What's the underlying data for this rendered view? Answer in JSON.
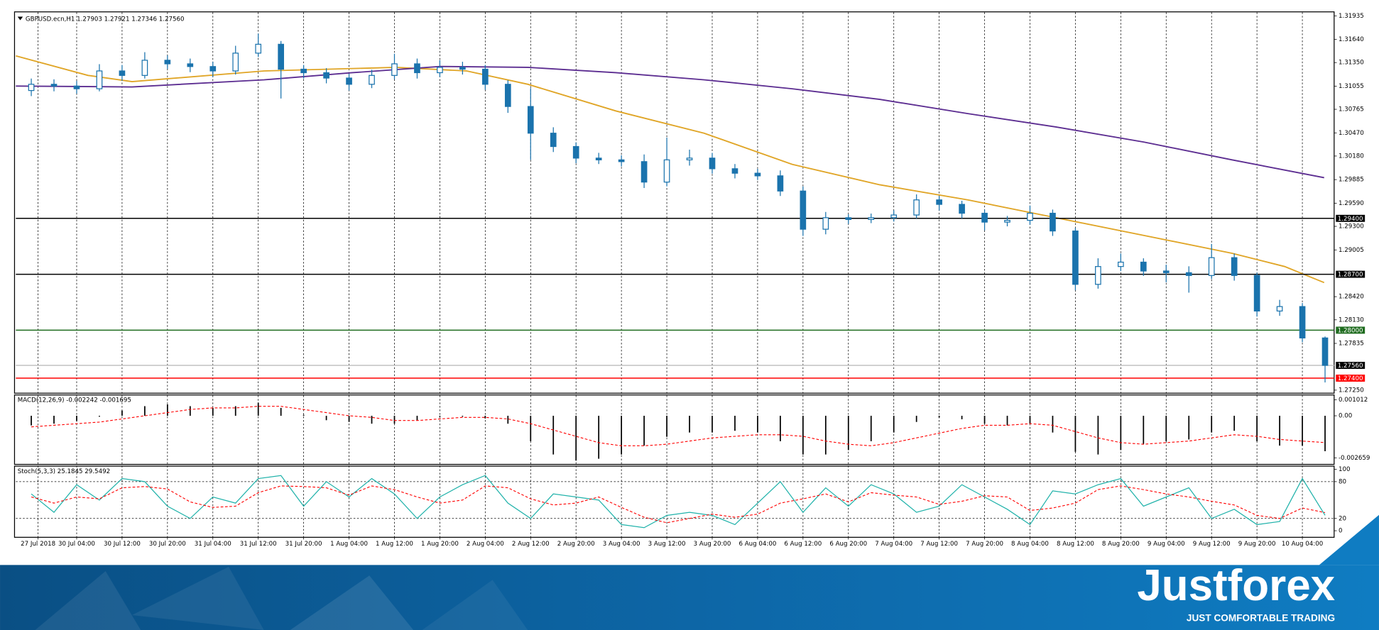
{
  "chart_data": [
    {
      "type": "candlestick",
      "title": "GBPUSD.ecn,H1  1.27903 1.27921 1.27346 1.27560",
      "color": "#1a73ad",
      "x": [
        0,
        0.5,
        1,
        1.5,
        2,
        2.5,
        3,
        3.5,
        4,
        4.5,
        5,
        5.5,
        6,
        6.5,
        7,
        7.5,
        8,
        8.5,
        9,
        9.5,
        10,
        10.5,
        11,
        11.5,
        12,
        12.5,
        13,
        13.5,
        14,
        14.5,
        15,
        15.5,
        16,
        16.5,
        17,
        17.5,
        18,
        18.5,
        19,
        19.5,
        20,
        20.5,
        21,
        21.5,
        22,
        22.5,
        23,
        23.5,
        24,
        24.5,
        25,
        25.5,
        26,
        26.5,
        27,
        27.5,
        28,
        28.5
      ],
      "open": [
        1.31,
        1.31078,
        1.31056,
        1.31022,
        1.31245,
        1.31189,
        1.31379,
        1.31334,
        1.313,
        1.31245,
        1.31468,
        1.31579,
        1.31267,
        1.31223,
        1.31156,
        1.31078,
        1.31189,
        1.31334,
        1.31223,
        1.3129,
        1.31267,
        1.31078,
        1.308,
        1.30466,
        1.30299,
        1.30154,
        1.30132,
        1.3011,
        1.29854,
        1.30132,
        1.30154,
        1.30021,
        1.29965,
        1.29932,
        1.29742,
        1.29264,
        1.29408,
        1.29386,
        1.29408,
        1.29442,
        1.29631,
        1.29575,
        1.29464,
        1.29353,
        1.29375,
        1.29464,
        1.29242,
        1.28574,
        1.28797,
        1.28852,
        1.28741,
        1.2872,
        1.28685,
        1.28908,
        1.28685,
        1.2824,
        1.28296,
        1.27903
      ],
      "high": [
        1.3115,
        1.3114,
        1.3112,
        1.3133,
        1.3132,
        1.3148,
        1.3144,
        1.314,
        1.3136,
        1.3156,
        1.31712,
        1.3162,
        1.3132,
        1.3128,
        1.3121,
        1.3126,
        1.3146,
        1.314,
        1.3138,
        1.3136,
        1.3132,
        1.3113,
        1.3103,
        1.3054,
        1.3035,
        1.3022,
        1.3019,
        1.302,
        1.3041,
        1.3026,
        1.3022,
        1.3008,
        1.3002,
        1.3,
        1.298,
        1.2948,
        1.2945,
        1.2946,
        1.295,
        1.297,
        1.2968,
        1.2962,
        1.2951,
        1.2943,
        1.2956,
        1.2951,
        1.2928,
        1.289,
        1.2896,
        1.289,
        1.2882,
        1.288,
        1.2908,
        1.2896,
        1.2872,
        1.2838,
        1.2834,
        1.27921
      ],
      "low": [
        1.3093,
        1.3099,
        1.3096,
        1.3099,
        1.3112,
        1.3115,
        1.3127,
        1.3123,
        1.3117,
        1.312,
        1.3142,
        1.309,
        1.3115,
        1.3109,
        1.31,
        1.3103,
        1.3114,
        1.3115,
        1.3117,
        1.312,
        1.3101,
        1.3072,
        1.30132,
        1.3023,
        1.3009,
        1.3008,
        1.3005,
        1.2978,
        1.298,
        1.3006,
        1.2996,
        1.299,
        1.2988,
        1.2968,
        1.2918,
        1.292,
        1.2933,
        1.2934,
        1.2936,
        1.294,
        1.295,
        1.294,
        1.2925,
        1.293,
        1.2932,
        1.2918,
        1.285,
        1.2852,
        1.2874,
        1.2868,
        1.286,
        1.2847,
        1.2864,
        1.2862,
        1.2817,
        1.2818,
        1.2785,
        1.27346
      ],
      "close": [
        1.31078,
        1.31056,
        1.31022,
        1.31245,
        1.31189,
        1.31379,
        1.31334,
        1.313,
        1.31245,
        1.31468,
        1.31579,
        1.31267,
        1.31223,
        1.31156,
        1.31078,
        1.31189,
        1.31334,
        1.31223,
        1.3129,
        1.31267,
        1.31078,
        1.308,
        1.30466,
        1.30299,
        1.30154,
        1.30132,
        1.3011,
        1.29854,
        1.30132,
        1.30154,
        1.30021,
        1.29965,
        1.29932,
        1.29742,
        1.29264,
        1.29408,
        1.29386,
        1.29408,
        1.29442,
        1.29631,
        1.29575,
        1.29464,
        1.29353,
        1.29375,
        1.29464,
        1.29242,
        1.28574,
        1.28797,
        1.28852,
        1.28741,
        1.2872,
        1.28685,
        1.28908,
        1.28685,
        1.2824,
        1.28296,
        1.27903,
        1.2756
      ],
      "lines": [
        {
          "color": "#e0a526",
          "x": [
            -0.34,
            1.25,
            2.22,
            5.13,
            8.03,
            9.59,
            10.94,
            12.88,
            14.82,
            16.76,
            18.69,
            20.63,
            22.57,
            24.51,
            26.45,
            27.61,
            28.48
          ],
          "values": [
            1.31434,
            1.31189,
            1.31111,
            1.31245,
            1.3129,
            1.31245,
            1.31078,
            1.30744,
            1.30466,
            1.30076,
            1.2982,
            1.29631,
            1.29408,
            1.29186,
            1.28963,
            1.28797,
            1.28596
          ]
        },
        {
          "color": "#5c2d91",
          "x": [
            -0.34,
            2.22,
            5.13,
            7.07,
            9.01,
            10.94,
            12.88,
            14.82,
            16.76,
            18.69,
            20.63,
            22.57,
            24.51,
            26.45,
            28.48
          ],
          "values": [
            1.31056,
            1.31045,
            1.31134,
            1.31223,
            1.31301,
            1.3129,
            1.31223,
            1.31134,
            1.31022,
            1.30889,
            1.30711,
            1.30544,
            1.30355,
            1.30132,
            1.29909
          ]
        }
      ],
      "levels": [
        {
          "value": 1.294,
          "label": "1.29400",
          "color": "#000000",
          "box_color": "#000000"
        },
        {
          "value": 1.287,
          "label": "1.28700",
          "color": "#000000",
          "box_color": "#000000"
        },
        {
          "value": 1.28,
          "label": "1.28000",
          "color": "#1e6b1e",
          "box_color": "#1e6b1e"
        },
        {
          "value": 1.2756,
          "label": "1.27560",
          "color": "#c0c0c0",
          "box_color": "#000000"
        },
        {
          "value": 1.274,
          "label": "1.27400",
          "color": "#ff0000",
          "box_color": "#ff0000"
        }
      ],
      "xlim": [
        -0.34,
        28.7
      ],
      "xticks": [
        {
          "value": 0.15,
          "label": "27 Jul 2018"
        },
        {
          "value": 1,
          "label": "30 Jul 04:00"
        },
        {
          "value": 2,
          "label": "30 Jul 12:00"
        },
        {
          "value": 3,
          "label": "30 Jul 20:00"
        },
        {
          "value": 4,
          "label": "31 Jul 04:00"
        },
        {
          "value": 5,
          "label": "31 Jul 12:00"
        },
        {
          "value": 6,
          "label": "31 Jul 20:00"
        },
        {
          "value": 7,
          "label": "1 Aug 04:00"
        },
        {
          "value": 8,
          "label": "1 Aug 12:00"
        },
        {
          "value": 9,
          "label": "1 Aug 20:00"
        },
        {
          "value": 10,
          "label": "2 Aug 04:00"
        },
        {
          "value": 11,
          "label": "2 Aug 12:00"
        },
        {
          "value": 12,
          "label": "2 Aug 20:00"
        },
        {
          "value": 13,
          "label": "3 Aug 04:00"
        },
        {
          "value": 14,
          "label": "3 Aug 12:00"
        },
        {
          "value": 15,
          "label": "3 Aug 20:00"
        },
        {
          "value": 16,
          "label": "6 Aug 04:00"
        },
        {
          "value": 17,
          "label": "6 Aug 12:00"
        },
        {
          "value": 18,
          "label": "6 Aug 20:00"
        },
        {
          "value": 19,
          "label": "7 Aug 04:00"
        },
        {
          "value": 20,
          "label": "7 Aug 12:00"
        },
        {
          "value": 21,
          "label": "7 Aug 20:00"
        },
        {
          "value": 22,
          "label": "8 Aug 04:00"
        },
        {
          "value": 23,
          "label": "8 Aug 12:00"
        },
        {
          "value": 24,
          "label": "8 Aug 20:00"
        },
        {
          "value": 25,
          "label": "9 Aug 04:00"
        },
        {
          "value": 26,
          "label": "9 Aug 12:00"
        },
        {
          "value": 27,
          "label": "9 Aug 20:00"
        },
        {
          "value": 28,
          "label": "10 Aug 04:00"
        }
      ],
      "ylim": [
        1.27217,
        1.3199
      ],
      "yticks": [
        1.31935,
        {
          "value": 1.3164,
          "label": "1.31640"
        },
        {
          "value": 1.3135,
          "label": "1.31350"
        },
        1.31055,
        1.30765,
        {
          "value": 1.3047,
          "label": "1.30470"
        },
        {
          "value": 1.3018,
          "label": "1.30180"
        },
        1.29885,
        {
          "value": 1.2959,
          "label": "1.29590"
        },
        {
          "value": 1.293,
          "label": "1.29300"
        },
        1.29005,
        {
          "value": 1.2842,
          "label": "1.28420"
        },
        {
          "value": 1.2813,
          "label": "1.28130"
        },
        1.27835,
        {
          "value": 1.2725,
          "label": "1.27250"
        }
      ]
    },
    {
      "type": "macd",
      "title": "MACD(12,26,9) -0.002242 -0.001695",
      "histogram_color": "#000000",
      "signal_color": "#ff0000",
      "histogram": [
        -0.00061,
        -0.0005,
        -0.00033,
        -6e-05,
        0.00033,
        0.00061,
        0.00072,
        0.00061,
        0.0005,
        0.00061,
        0.00083,
        0.0005,
        6e-05,
        -0.00028,
        -0.00039,
        -0.0005,
        -0.0005,
        -0.00028,
        -6e-05,
        -6e-05,
        -0.00017,
        -0.0005,
        -0.00161,
        -0.00245,
        -0.00284,
        -0.00272,
        -0.00245,
        -0.00189,
        -0.00133,
        -0.00106,
        -0.00106,
        -0.00095,
        -0.00106,
        -0.00161,
        -0.00245,
        -0.00245,
        -0.00217,
        -0.00161,
        -0.00106,
        -0.00039,
        -0.00011,
        -0.00022,
        -0.0005,
        -0.00061,
        -0.0005,
        -0.00106,
        -0.00228,
        -0.00245,
        -0.00217,
        -0.00178,
        -0.00161,
        -0.0015,
        -0.00106,
        -0.00095,
        -0.00161,
        -0.00189,
        -0.00189,
        -0.002242
      ],
      "signal": [
        -0.0007,
        -0.0006,
        -0.0005,
        -0.0004,
        -0.0002,
        0,
        0.0002,
        0.0004,
        0.0005,
        0.0005,
        0.0006,
        0.0006,
        0.0004,
        0.0002,
        0,
        -0.0001,
        -0.0003,
        -0.0003,
        -0.0002,
        -0.0001,
        -0.0001,
        -0.0002,
        -0.0005,
        -0.0009,
        -0.0013,
        -0.0017,
        -0.0019,
        -0.0019,
        -0.0018,
        -0.0016,
        -0.0014,
        -0.0013,
        -0.0012,
        -0.0012,
        -0.0013,
        -0.0016,
        -0.0018,
        -0.0019,
        -0.0017,
        -0.0014,
        -0.0011,
        -0.0008,
        -0.0006,
        -0.0006,
        -0.0005,
        -0.0006,
        -0.001,
        -0.0014,
        -0.0017,
        -0.0018,
        -0.0017,
        -0.0016,
        -0.0014,
        -0.0012,
        -0.0013,
        -0.0015,
        -0.0016,
        -0.001695
      ],
      "ylim": [
        -0.003048,
        0.001346
      ],
      "yticks": [
        0.001012,
        {
          "value": 0,
          "label": "0.00"
        },
        -0.002659
      ]
    },
    {
      "type": "stochastic",
      "title": "Stoch(5,3,3) 25.1845 29.5492",
      "k_color": "#20b2aa",
      "d_color": "#ff0000",
      "k": [
        60,
        30,
        75,
        50,
        85,
        80,
        40,
        20,
        55,
        45,
        85,
        90,
        40,
        80,
        55,
        85,
        60,
        20,
        55,
        75,
        90,
        45,
        20,
        60,
        55,
        50,
        10,
        5,
        25,
        30,
        25,
        10,
        45,
        80,
        30,
        70,
        40,
        75,
        60,
        30,
        40,
        75,
        55,
        35,
        10,
        65,
        60,
        75,
        85,
        40,
        55,
        70,
        20,
        35,
        10,
        15,
        85,
        25.1845
      ],
      "d": [
        55,
        45,
        55,
        52,
        70,
        72,
        68,
        47,
        38,
        40,
        62,
        73,
        72,
        70,
        58,
        73,
        67,
        55,
        45,
        50,
        73,
        70,
        52,
        42,
        45,
        55,
        38,
        22,
        13,
        20,
        27,
        22,
        27,
        45,
        52,
        60,
        47,
        62,
        58,
        55,
        43,
        48,
        57,
        55,
        33,
        37,
        45,
        67,
        73,
        67,
        60,
        55,
        48,
        42,
        25,
        20,
        37,
        29.5492
      ],
      "levels": [
        80,
        20
      ],
      "ylim": [
        -10,
        106
      ],
      "yticks": [
        100,
        80,
        20,
        0
      ]
    }
  ],
  "brand": {
    "name": "Justforex",
    "tagline": "JUST COMFORTABLE TRADING"
  }
}
